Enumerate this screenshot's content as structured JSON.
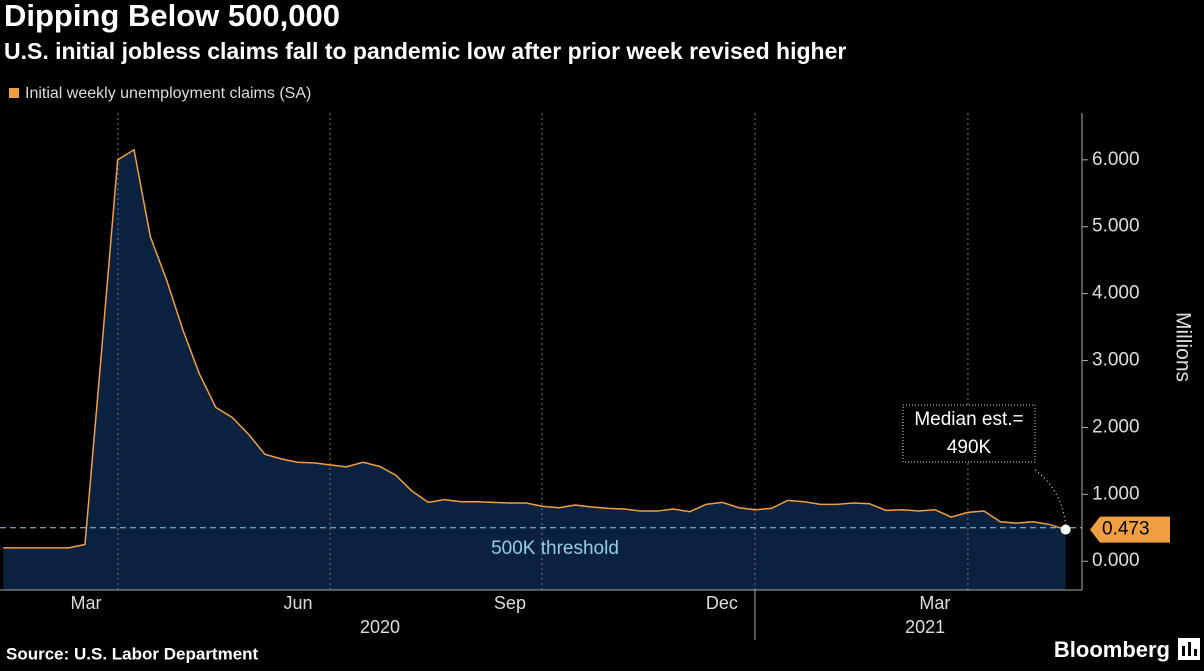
{
  "chart_data": {
    "type": "area",
    "title": "Dipping Below 500,000",
    "subtitle": "U.S. initial jobless claims fall to pandemic low after prior week revised higher",
    "y_label": "Millions",
    "source": "Source: U.S. Labor Department",
    "brand": "Bloomberg",
    "series": [
      {
        "name": "Initial weekly unemployment claims (SA)",
        "color": "#f0a040",
        "values": [
          0.2,
          0.2,
          0.2,
          0.2,
          0.2,
          0.25,
          3.1,
          6.0,
          6.15,
          4.85,
          4.2,
          3.45,
          2.8,
          2.3,
          2.15,
          1.9,
          1.6,
          1.53,
          1.48,
          1.47,
          1.44,
          1.41,
          1.48,
          1.42,
          1.29,
          1.05,
          0.88,
          0.92,
          0.89,
          0.89,
          0.88,
          0.87,
          0.87,
          0.82,
          0.8,
          0.84,
          0.81,
          0.79,
          0.78,
          0.75,
          0.75,
          0.78,
          0.74,
          0.85,
          0.88,
          0.8,
          0.77,
          0.79,
          0.91,
          0.89,
          0.85,
          0.85,
          0.87,
          0.86,
          0.76,
          0.77,
          0.75,
          0.77,
          0.66,
          0.73,
          0.75,
          0.59,
          0.57,
          0.59,
          0.55,
          0.473
        ]
      }
    ],
    "fill_color": "#0b2140",
    "xlim": [
      -0.2,
      66
    ],
    "xticks": [
      {
        "value": 5.06,
        "label": "Mar"
      },
      {
        "value": 18.03,
        "label": "Jun"
      },
      {
        "value": 31.0,
        "label": "Sep"
      },
      {
        "value": 43.97,
        "label": "Dec"
      },
      {
        "value": 57.0,
        "label": "Mar"
      }
    ],
    "year_labels": [
      {
        "value": 23.05,
        "label": "2020"
      },
      {
        "value": 56.4,
        "label": "2021"
      }
    ],
    "year_separators": [
      45.99
    ],
    "xgrid": [
      7.02,
      19.99,
      32.96,
      45.99,
      59.02
    ],
    "ylim": [
      -0.43,
      6.7
    ],
    "yticks": [
      {
        "value": 0,
        "label": "0.000"
      },
      {
        "value": 1,
        "label": "1.000"
      },
      {
        "value": 2,
        "label": "2.000"
      },
      {
        "value": 3,
        "label": "3.000"
      },
      {
        "value": 4,
        "label": "4.000"
      },
      {
        "value": 5,
        "label": "5.000"
      },
      {
        "value": 6,
        "label": "6.000"
      }
    ],
    "threshold": {
      "value": 0.5,
      "label": "500K threshold",
      "color": "#8fd0e0"
    },
    "annotation": [
      "Median est.=",
      "490K"
    ]
  }
}
